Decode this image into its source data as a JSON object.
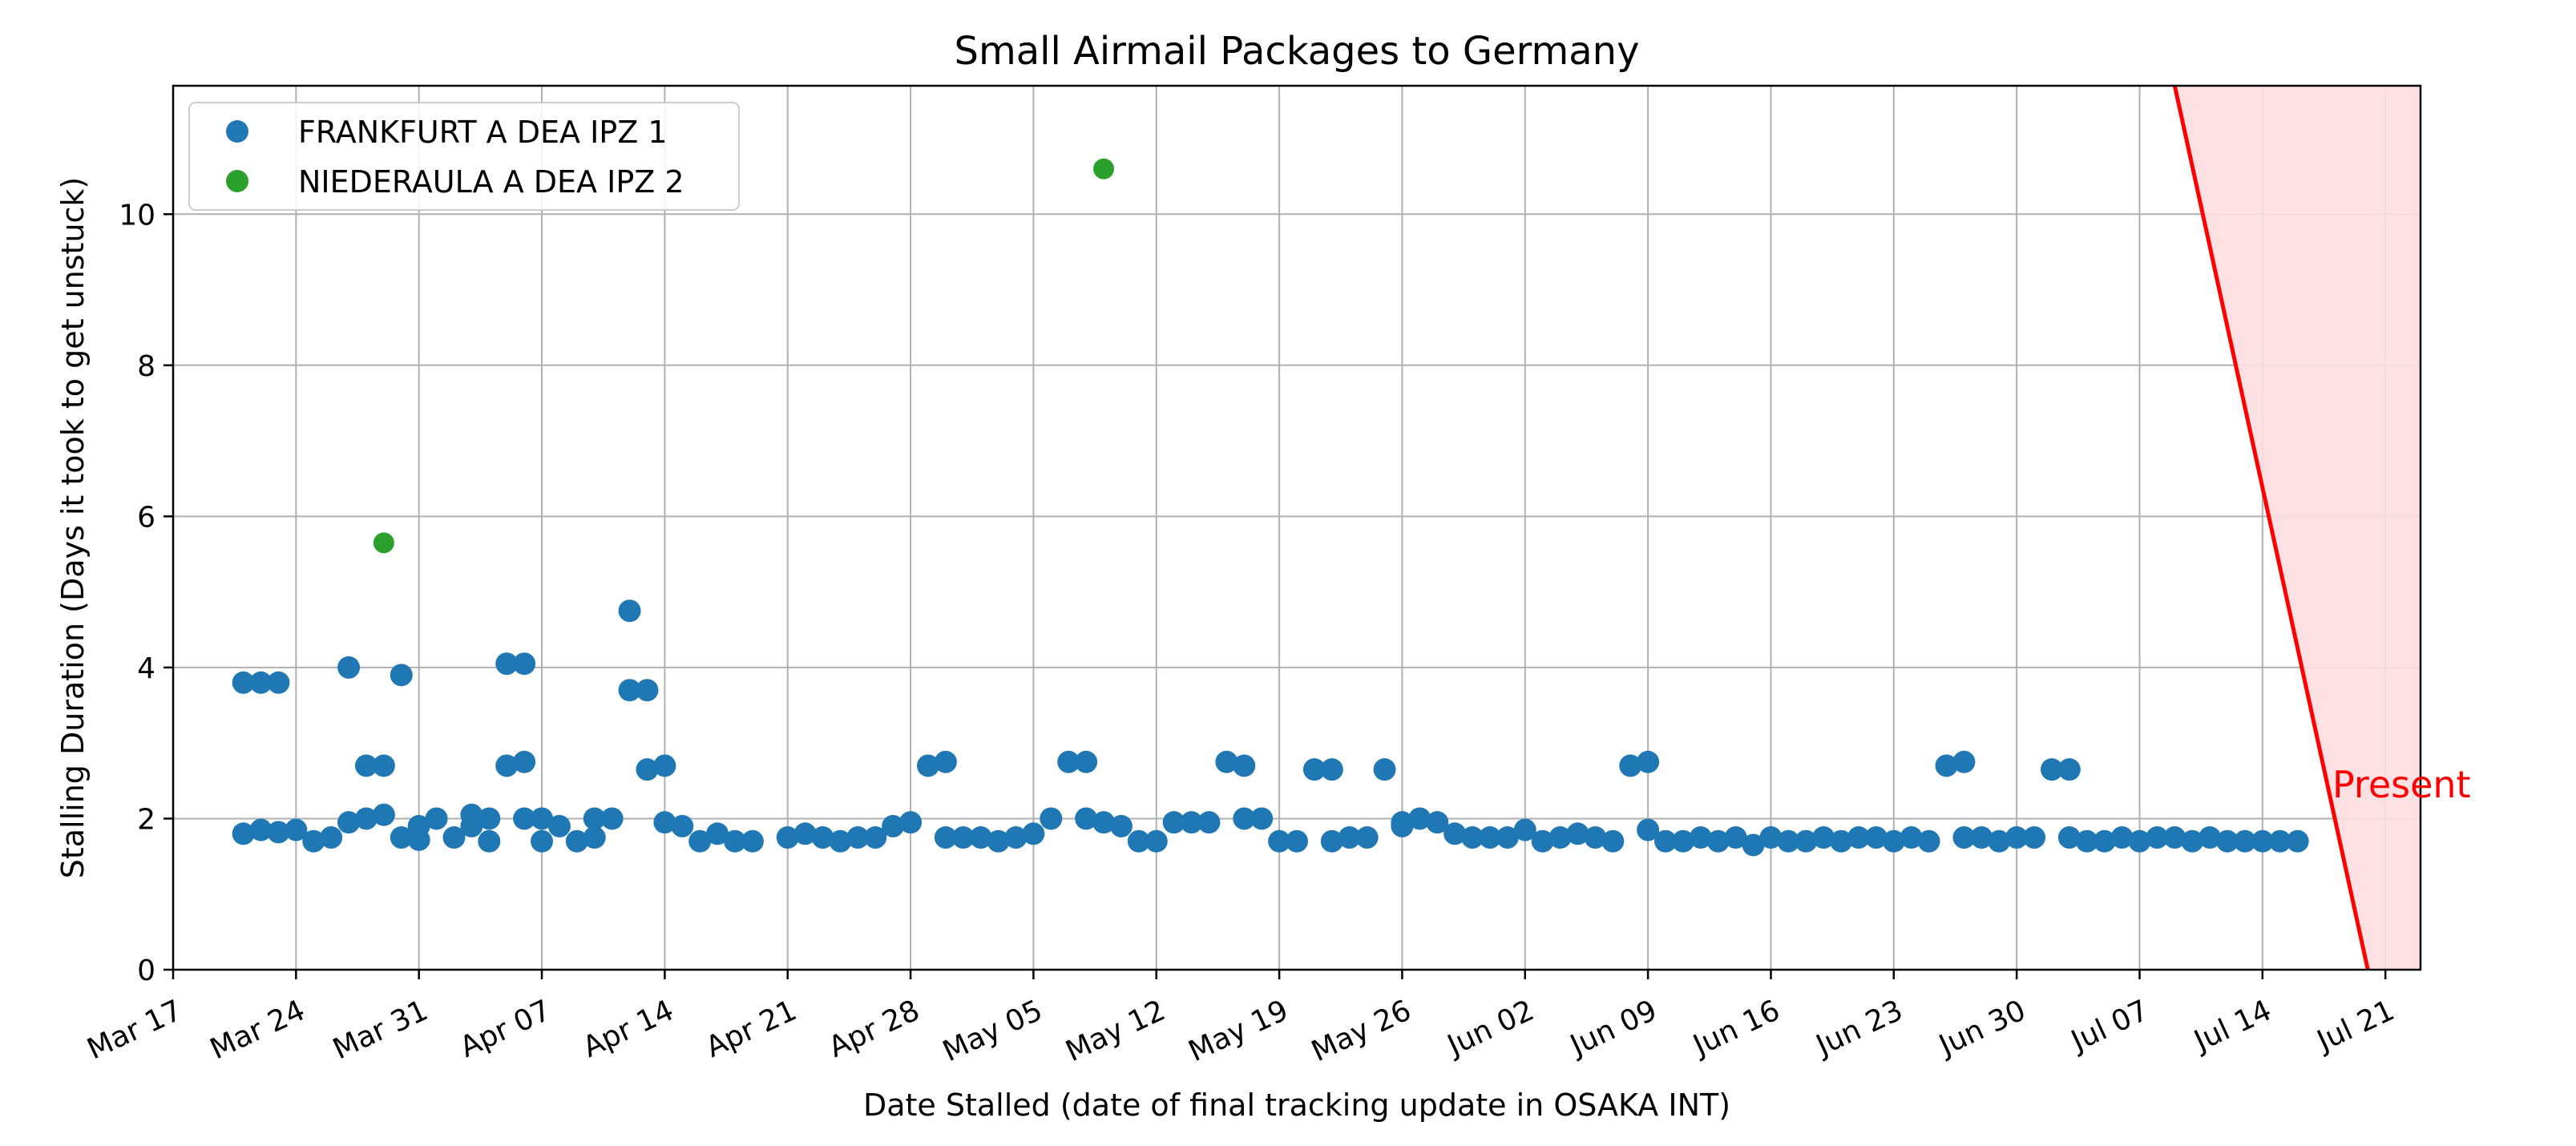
{
  "chart_data": {
    "type": "scatter",
    "title": "Small Airmail Packages to Germany",
    "xlabel": "Date Stalled (date of final tracking update in OSAKA INT)",
    "ylabel": "Stalling Duration (Days it took to get unstuck)",
    "xlim": [
      "2024-03-17",
      "2024-07-23"
    ],
    "ylim": [
      0,
      11.7
    ],
    "x_ticks": [
      "Mar 17",
      "Mar 24",
      "Mar 31",
      "Apr 07",
      "Apr 14",
      "Apr 21",
      "Apr 28",
      "May 05",
      "May 12",
      "May 19",
      "May 26",
      "Jun 02",
      "Jun 09",
      "Jun 16",
      "Jun 23",
      "Jun 30",
      "Jul 07",
      "Jul 14",
      "Jul 21"
    ],
    "y_ticks": [
      0,
      2,
      4,
      6,
      8,
      10
    ],
    "grid": true,
    "legend_position": "top-left",
    "colors": {
      "series1": "#1f77b4",
      "series2": "#2ca02c",
      "present": "#ff0000",
      "present_fill": "#ffdde0"
    },
    "series": [
      {
        "name": "FRANKFURT A DEA IPZ 1",
        "points": [
          [
            "2024-03-21",
            3.8
          ],
          [
            "2024-03-22",
            3.8
          ],
          [
            "2024-03-23",
            3.8
          ],
          [
            "2024-03-21",
            1.8
          ],
          [
            "2024-03-22",
            1.85
          ],
          [
            "2024-03-23",
            1.82
          ],
          [
            "2024-03-24",
            1.85
          ],
          [
            "2024-03-25",
            1.7
          ],
          [
            "2024-03-26",
            1.75
          ],
          [
            "2024-03-27",
            1.95
          ],
          [
            "2024-03-28",
            2.0
          ],
          [
            "2024-03-27",
            4.0
          ],
          [
            "2024-03-28",
            2.7
          ],
          [
            "2024-03-29",
            2.7
          ],
          [
            "2024-03-29",
            2.05
          ],
          [
            "2024-03-30",
            3.9
          ],
          [
            "2024-03-30",
            1.75
          ],
          [
            "2024-03-31",
            1.72
          ],
          [
            "2024-03-31",
            1.9
          ],
          [
            "2024-04-01",
            2.0
          ],
          [
            "2024-04-02",
            1.75
          ],
          [
            "2024-04-03",
            1.9
          ],
          [
            "2024-04-03",
            2.05
          ],
          [
            "2024-04-04",
            2.0
          ],
          [
            "2024-04-04",
            1.7
          ],
          [
            "2024-04-05",
            4.05
          ],
          [
            "2024-04-06",
            4.05
          ],
          [
            "2024-04-05",
            2.7
          ],
          [
            "2024-04-06",
            2.75
          ],
          [
            "2024-04-06",
            2.0
          ],
          [
            "2024-04-07",
            1.7
          ],
          [
            "2024-04-07",
            2.0
          ],
          [
            "2024-04-08",
            1.9
          ],
          [
            "2024-04-09",
            1.7
          ],
          [
            "2024-04-10",
            1.75
          ],
          [
            "2024-04-10",
            2.0
          ],
          [
            "2024-04-11",
            2.0
          ],
          [
            "2024-04-12",
            4.75
          ],
          [
            "2024-04-12",
            3.7
          ],
          [
            "2024-04-13",
            3.7
          ],
          [
            "2024-04-13",
            2.65
          ],
          [
            "2024-04-14",
            2.7
          ],
          [
            "2024-04-14",
            1.95
          ],
          [
            "2024-04-15",
            1.9
          ],
          [
            "2024-04-16",
            1.7
          ],
          [
            "2024-04-17",
            1.8
          ],
          [
            "2024-04-18",
            1.7
          ],
          [
            "2024-04-19",
            1.7
          ],
          [
            "2024-04-21",
            1.75
          ],
          [
            "2024-04-22",
            1.8
          ],
          [
            "2024-04-23",
            1.75
          ],
          [
            "2024-04-24",
            1.7
          ],
          [
            "2024-04-25",
            1.75
          ],
          [
            "2024-04-26",
            1.75
          ],
          [
            "2024-04-27",
            1.9
          ],
          [
            "2024-04-28",
            1.95
          ],
          [
            "2024-04-29",
            2.7
          ],
          [
            "2024-04-30",
            2.75
          ],
          [
            "2024-04-30",
            1.75
          ],
          [
            "2024-05-01",
            1.75
          ],
          [
            "2024-05-02",
            1.75
          ],
          [
            "2024-05-03",
            1.7
          ],
          [
            "2024-05-04",
            1.75
          ],
          [
            "2024-05-05",
            1.8
          ],
          [
            "2024-05-06",
            2.0
          ],
          [
            "2024-05-07",
            2.75
          ],
          [
            "2024-05-08",
            2.75
          ],
          [
            "2024-05-08",
            2.0
          ],
          [
            "2024-05-09",
            1.95
          ],
          [
            "2024-05-10",
            1.9
          ],
          [
            "2024-05-11",
            1.7
          ],
          [
            "2024-05-12",
            1.7
          ],
          [
            "2024-05-13",
            1.95
          ],
          [
            "2024-05-14",
            1.95
          ],
          [
            "2024-05-15",
            1.95
          ],
          [
            "2024-05-16",
            2.75
          ],
          [
            "2024-05-17",
            2.7
          ],
          [
            "2024-05-17",
            2.0
          ],
          [
            "2024-05-18",
            2.0
          ],
          [
            "2024-05-19",
            1.7
          ],
          [
            "2024-05-20",
            1.7
          ],
          [
            "2024-05-21",
            2.65
          ],
          [
            "2024-05-22",
            2.65
          ],
          [
            "2024-05-22",
            1.7
          ],
          [
            "2024-05-23",
            1.75
          ],
          [
            "2024-05-24",
            1.75
          ],
          [
            "2024-05-25",
            2.65
          ],
          [
            "2024-05-26",
            1.9
          ],
          [
            "2024-05-26",
            1.95
          ],
          [
            "2024-05-27",
            2.0
          ],
          [
            "2024-05-28",
            1.95
          ],
          [
            "2024-05-29",
            1.8
          ],
          [
            "2024-05-30",
            1.75
          ],
          [
            "2024-05-31",
            1.75
          ],
          [
            "2024-06-01",
            1.75
          ],
          [
            "2024-06-02",
            1.85
          ],
          [
            "2024-06-03",
            1.7
          ],
          [
            "2024-06-04",
            1.75
          ],
          [
            "2024-06-05",
            1.8
          ],
          [
            "2024-06-06",
            1.75
          ],
          [
            "2024-06-07",
            1.7
          ],
          [
            "2024-06-08",
            2.7
          ],
          [
            "2024-06-09",
            2.75
          ],
          [
            "2024-06-09",
            1.85
          ],
          [
            "2024-06-10",
            1.7
          ],
          [
            "2024-06-11",
            1.7
          ],
          [
            "2024-06-12",
            1.75
          ],
          [
            "2024-06-13",
            1.7
          ],
          [
            "2024-06-14",
            1.75
          ],
          [
            "2024-06-15",
            1.65
          ],
          [
            "2024-06-16",
            1.75
          ],
          [
            "2024-06-17",
            1.7
          ],
          [
            "2024-06-18",
            1.7
          ],
          [
            "2024-06-19",
            1.75
          ],
          [
            "2024-06-20",
            1.7
          ],
          [
            "2024-06-21",
            1.75
          ],
          [
            "2024-06-22",
            1.75
          ],
          [
            "2024-06-23",
            1.7
          ],
          [
            "2024-06-24",
            1.75
          ],
          [
            "2024-06-25",
            1.7
          ],
          [
            "2024-06-26",
            2.7
          ],
          [
            "2024-06-27",
            2.75
          ],
          [
            "2024-06-27",
            1.75
          ],
          [
            "2024-06-28",
            1.75
          ],
          [
            "2024-06-29",
            1.7
          ],
          [
            "2024-06-30",
            1.75
          ],
          [
            "2024-07-01",
            1.75
          ],
          [
            "2024-07-02",
            2.65
          ],
          [
            "2024-07-03",
            2.65
          ],
          [
            "2024-07-03",
            1.75
          ],
          [
            "2024-07-04",
            1.7
          ],
          [
            "2024-07-05",
            1.7
          ],
          [
            "2024-07-06",
            1.75
          ],
          [
            "2024-07-07",
            1.7
          ],
          [
            "2024-07-08",
            1.75
          ],
          [
            "2024-07-09",
            1.75
          ],
          [
            "2024-07-10",
            1.7
          ],
          [
            "2024-07-11",
            1.75
          ],
          [
            "2024-07-12",
            1.7
          ],
          [
            "2024-07-13",
            1.7
          ],
          [
            "2024-07-14",
            1.7
          ],
          [
            "2024-07-15",
            1.7
          ],
          [
            "2024-07-16",
            1.7
          ]
        ]
      },
      {
        "name": "NIEDERAULA A DEA IPZ 2",
        "points": [
          [
            "2024-03-29",
            5.65
          ],
          [
            "2024-05-09",
            10.6
          ]
        ]
      }
    ],
    "present_annotation": {
      "label": "Present",
      "line_from": [
        "2024-07-09",
        11.7
      ],
      "line_to": [
        "2024-07-20",
        0
      ]
    }
  }
}
